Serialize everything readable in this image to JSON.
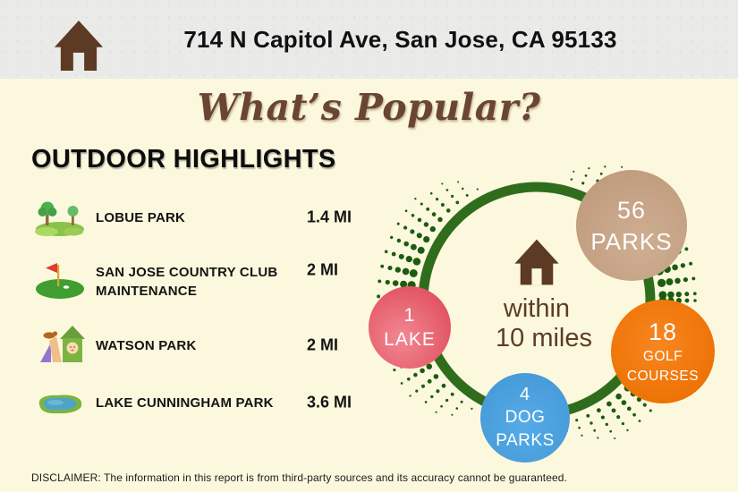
{
  "header": {
    "address": "714 N Capitol Ave, San Jose, CA 95133",
    "icon": "house-icon"
  },
  "title": "What’s Popular?",
  "section_title": "OUTDOOR HIGHLIGHTS",
  "places": [
    {
      "icon": "park-icon",
      "name_line1": "LOBUE PARK",
      "name_line2": "",
      "distance": "1.4 MI"
    },
    {
      "icon": "golf-icon",
      "name_line1": "SAN JOSE COUNTRY CLUB",
      "name_line2": "MAINTENANCE",
      "distance": "2 MI"
    },
    {
      "icon": "dog-park-icon",
      "name_line1": "WATSON PARK",
      "name_line2": "",
      "distance": "2 MI"
    },
    {
      "icon": "lake-icon",
      "name_line1": "LAKE CUNNINGHAM PARK",
      "name_line2": "",
      "distance": "3.6 MI"
    }
  ],
  "radius_diagram": {
    "center_icon": "home-icon",
    "center_label_line1": "within",
    "center_label_line2": "10 miles",
    "ring_color": "#2f6d1d",
    "dot_color": "#1c5c10",
    "bubbles": [
      {
        "count": "56",
        "value": 56,
        "label": "PARKS",
        "color": "#c6a285"
      },
      {
        "count": "1",
        "value": 1,
        "label": "LAKE",
        "color": "#e75e6e"
      },
      {
        "count": "18",
        "value": 18,
        "label": "GOLF COURSES",
        "color": "#f17a0d"
      },
      {
        "count": "4",
        "value": 4,
        "label": "DOG PARKS",
        "color": "#4ba2df"
      }
    ]
  },
  "disclaimer": "DISCLAIMER: The information in this report is from third-party sources and its accuracy cannot be guaranteed.",
  "colors": {
    "page_background": "#fcf8dd",
    "header_background": "#eaeae8",
    "brown_accent": "#5d3a23",
    "title_brown": "#6a4533",
    "text_black": "#111111"
  }
}
